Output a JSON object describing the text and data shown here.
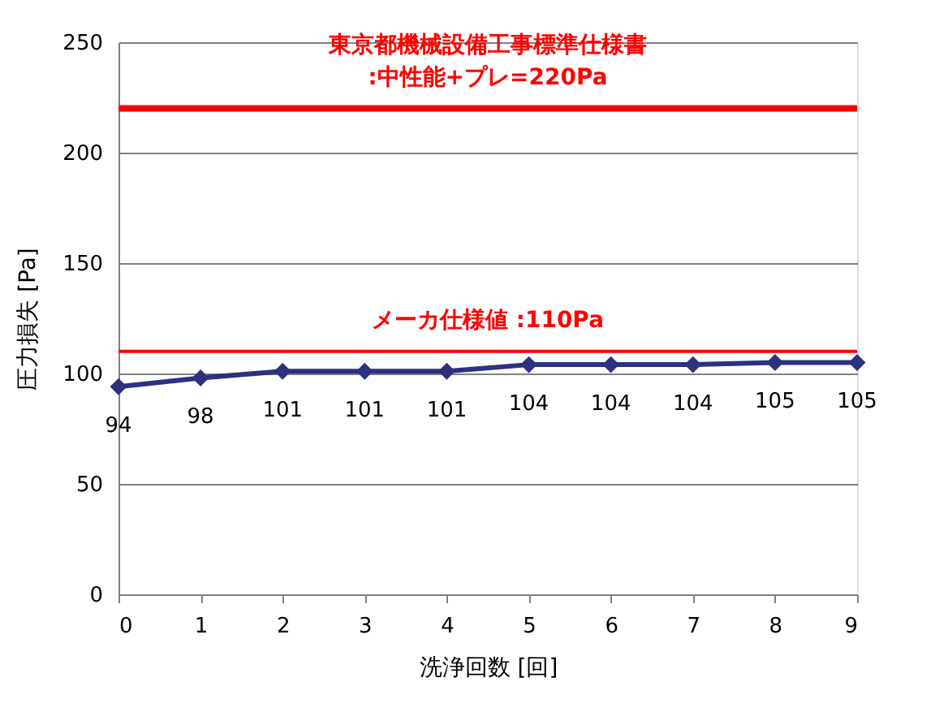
{
  "chart_data": {
    "type": "line",
    "xlabel": "洗浄回数 [回]",
    "ylabel": "圧力損失 [Pa]",
    "x": [
      0,
      1,
      2,
      3,
      4,
      5,
      6,
      7,
      8,
      9
    ],
    "series": [
      {
        "color": "#2e3180",
        "values": [
          94,
          98,
          101,
          101,
          101,
          104,
          104,
          104,
          105,
          105
        ]
      }
    ],
    "data_labels": true,
    "marker": "diamond",
    "line_style": "solid",
    "xlim": [
      0,
      9
    ],
    "xticks": [
      0,
      1,
      2,
      3,
      4,
      5,
      6,
      7,
      8,
      9
    ],
    "ylim": [
      0,
      250
    ],
    "yticks": [
      0,
      50,
      100,
      150,
      200,
      250
    ],
    "grid": "y",
    "ref_lines": [
      {
        "axis": "y",
        "value": 220,
        "label": "東京都機械設備工事標準仕様書\n:中性能+プレ=220Pa",
        "color": "#ff0000"
      },
      {
        "axis": "y",
        "value": 110,
        "label": "メーカ仕様値 :110Pa",
        "color": "#ff0000"
      }
    ]
  }
}
